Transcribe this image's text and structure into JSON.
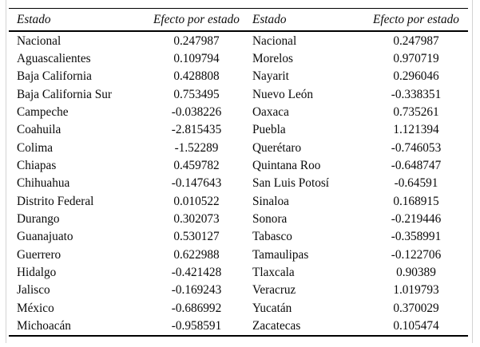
{
  "table": {
    "headers": [
      "Estado",
      "Efecto por estado",
      "Estado",
      "Efecto por estado"
    ],
    "rows": [
      [
        "Nacional",
        "0.247987",
        "Nacional",
        "0.247987"
      ],
      [
        "Aguascalientes",
        "0.109794",
        "Morelos",
        "0.970719"
      ],
      [
        "Baja California",
        "0.428808",
        "Nayarit",
        "0.296046"
      ],
      [
        "Baja California Sur",
        "0.753495",
        "Nuevo León",
        "-0.338351"
      ],
      [
        "Campeche",
        "-0.038226",
        "Oaxaca",
        "0.735261"
      ],
      [
        "Coahuila",
        "-2.815435",
        "Puebla",
        "1.121394"
      ],
      [
        "Colima",
        "-1.52289",
        "Querétaro",
        "-0.746053"
      ],
      [
        "Chiapas",
        "0.459782",
        "Quintana Roo",
        "-0.648747"
      ],
      [
        "Chihuahua",
        "-0.147643",
        "San Luis Potosí",
        "-0.64591"
      ],
      [
        "Distrito Federal",
        "0.010522",
        "Sinaloa",
        "0.168915"
      ],
      [
        "Durango",
        "0.302073",
        "Sonora",
        "-0.219446"
      ],
      [
        "Guanajuato",
        "0.530127",
        "Tabasco",
        "-0.358991"
      ],
      [
        "Guerrero",
        "0.622988",
        "Tamaulipas",
        "-0.122706"
      ],
      [
        "Hidalgo",
        "-0.421428",
        "Tlaxcala",
        "0.90389"
      ],
      [
        "Jalisco",
        "-0.169243",
        "Veracruz",
        "1.019793"
      ],
      [
        "México",
        "-0.686992",
        "Yucatán",
        "0.370029"
      ],
      [
        "Michoacán",
        "-0.958591",
        "Zacatecas",
        "0.105474"
      ]
    ]
  },
  "colors": {
    "rule": "#000000",
    "frame": "#d3d3d3",
    "background": "#ffffff",
    "text": "#0a0a0a"
  }
}
